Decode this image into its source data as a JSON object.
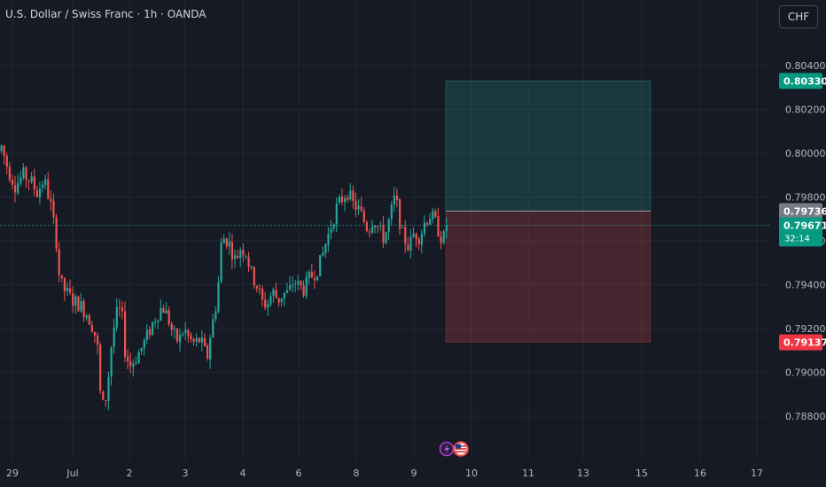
{
  "header": {
    "symbol_title": "U.S. Dollar / Swiss Franc · 1h · OANDA",
    "currency_button": "CHF"
  },
  "colors": {
    "up": "#26a69a",
    "down": "#ef5350",
    "background": "#161a25",
    "grid": "#232633",
    "profit_zone": "rgba(38,166,154,0.22)",
    "loss_zone": "rgba(239,83,80,0.22)",
    "entry_badge": "#787b86",
    "target_badge": "#089981",
    "stop_badge": "#f23645"
  },
  "events": {
    "icons": [
      "lightning-icon",
      "us-flag-icon"
    ]
  },
  "chart_data": {
    "type": "candlestick",
    "title": "U.S. Dollar / Swiss Franc · 1h · OANDA",
    "x_tick_labels": [
      "29",
      "Jul",
      "2",
      "3",
      "4",
      "6",
      "8",
      "9",
      "10",
      "11",
      "13",
      "15",
      "16",
      "17"
    ],
    "y_tick_labels": [
      "0.80400",
      "0.80200",
      "0.80000",
      "0.79800",
      "0.79600",
      "0.79400",
      "0.79200",
      "0.79000",
      "0.78800"
    ],
    "ylim": [
      0.7874,
      0.8051
    ],
    "grid": true,
    "current_price": "0.79671",
    "countdown": "32:14",
    "position": {
      "type": "long",
      "entry": "0.79736",
      "target": "0.80330",
      "stop": "0.79137"
    },
    "close_path": [
      [
        0,
        0.8003
      ],
      [
        8,
        0.7992
      ],
      [
        16,
        0.7985
      ],
      [
        24,
        0.799
      ],
      [
        32,
        0.7988
      ],
      [
        40,
        0.7982
      ],
      [
        48,
        0.7988
      ],
      [
        55,
        0.7978
      ],
      [
        62,
        0.796
      ],
      [
        66,
        0.7941
      ],
      [
        72,
        0.7937
      ],
      [
        80,
        0.7933
      ],
      [
        88,
        0.7931
      ],
      [
        96,
        0.7927
      ],
      [
        102,
        0.7922
      ],
      [
        108,
        0.7914
      ],
      [
        112,
        0.7888
      ],
      [
        116,
        0.7883
      ],
      [
        120,
        0.7895
      ],
      [
        124,
        0.7912
      ],
      [
        128,
        0.7923
      ],
      [
        132,
        0.7929
      ],
      [
        136,
        0.7926
      ],
      [
        140,
        0.7908
      ],
      [
        146,
        0.7903
      ],
      [
        152,
        0.7907
      ],
      [
        158,
        0.7911
      ],
      [
        164,
        0.7916
      ],
      [
        170,
        0.7922
      ],
      [
        176,
        0.7927
      ],
      [
        182,
        0.793
      ],
      [
        188,
        0.7925
      ],
      [
        194,
        0.7917
      ],
      [
        200,
        0.7914
      ],
      [
        206,
        0.792
      ],
      [
        212,
        0.7915
      ],
      [
        218,
        0.7913
      ],
      [
        224,
        0.7915
      ],
      [
        228,
        0.7911
      ],
      [
        232,
        0.7906
      ],
      [
        236,
        0.7918
      ],
      [
        240,
        0.7926
      ],
      [
        244,
        0.7936
      ],
      [
        248,
        0.7958
      ],
      [
        252,
        0.7962
      ],
      [
        258,
        0.7958
      ],
      [
        264,
        0.7951
      ],
      [
        270,
        0.7957
      ],
      [
        276,
        0.7955
      ],
      [
        282,
        0.7945
      ],
      [
        288,
        0.794
      ],
      [
        294,
        0.7932
      ],
      [
        300,
        0.7931
      ],
      [
        306,
        0.7937
      ],
      [
        312,
        0.7933
      ],
      [
        318,
        0.7936
      ],
      [
        324,
        0.7936
      ],
      [
        330,
        0.7942
      ],
      [
        336,
        0.7939
      ],
      [
        342,
        0.7938
      ],
      [
        348,
        0.7943
      ],
      [
        354,
        0.7946
      ],
      [
        360,
        0.795
      ],
      [
        366,
        0.7959
      ],
      [
        372,
        0.7967
      ],
      [
        378,
        0.7975
      ],
      [
        384,
        0.7979
      ],
      [
        390,
        0.7983
      ],
      [
        396,
        0.7977
      ],
      [
        402,
        0.7975
      ],
      [
        408,
        0.797
      ],
      [
        414,
        0.7965
      ],
      [
        420,
        0.7971
      ],
      [
        426,
        0.7965
      ],
      [
        432,
        0.7961
      ],
      [
        438,
        0.797
      ],
      [
        444,
        0.798
      ],
      [
        448,
        0.7973
      ],
      [
        452,
        0.7963
      ],
      [
        456,
        0.796
      ],
      [
        460,
        0.7957
      ],
      [
        466,
        0.7964
      ],
      [
        472,
        0.7962
      ],
      [
        478,
        0.7969
      ],
      [
        484,
        0.7972
      ],
      [
        490,
        0.7968
      ],
      [
        496,
        0.7962
      ],
      [
        500,
        0.7961
      ],
      [
        504,
        0.7967
      ]
    ]
  }
}
